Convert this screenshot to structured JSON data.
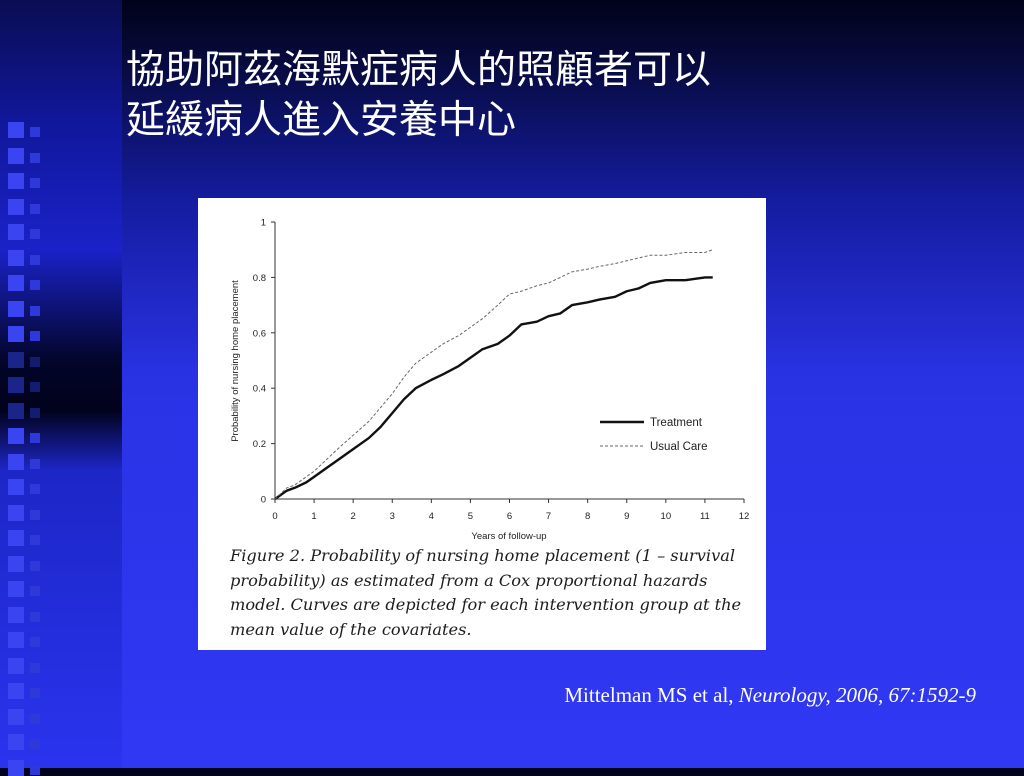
{
  "slide": {
    "title_line1": "協助阿茲海默症病人的照顧者可以",
    "title_line2": "延緩病人進入安養中心",
    "caption": "Figure 2. Probability of nursing home placement (1 – survival probability) as estimated from a Cox proportional hazards model. Curves are depicted for each intervention group at the mean value of the covariates.",
    "citation_author": "Mittelman MS et al, ",
    "citation_journal": "Neurology, 2006, 67:1592-9"
  },
  "colors": {
    "background_top": "#01021a",
    "background_bottom": "#3038f4",
    "title_text": "#ffffff",
    "figure_background": "#ffffff",
    "curve": "#111111"
  },
  "chart_data": {
    "type": "line",
    "xlabel": "Years of follow-up",
    "ylabel": "Probability of nursing home placement",
    "xlim": [
      0,
      12
    ],
    "ylim": [
      0,
      1
    ],
    "xticks": [
      "0",
      "1",
      "2",
      "3",
      "4",
      "5",
      "6",
      "7",
      "8",
      "9",
      "10",
      "11",
      "12"
    ],
    "yticks": [
      "0",
      "0.2",
      "0.4",
      "0.6",
      "0.8",
      "1"
    ],
    "legend_position": "right, lower-middle",
    "grid": false,
    "series": [
      {
        "name": "Treatment",
        "style": "solid",
        "x": [
          0,
          0.3,
          0.5,
          0.8,
          1.0,
          1.3,
          1.6,
          2.0,
          2.4,
          2.7,
          3.0,
          3.3,
          3.6,
          4.0,
          4.3,
          4.7,
          5.0,
          5.3,
          5.7,
          6.0,
          6.3,
          6.7,
          7.0,
          7.3,
          7.6,
          8.0,
          8.3,
          8.7,
          9.0,
          9.3,
          9.6,
          10.0,
          10.5,
          11.0,
          11.2
        ],
        "y": [
          0,
          0.03,
          0.04,
          0.06,
          0.08,
          0.11,
          0.14,
          0.18,
          0.22,
          0.26,
          0.31,
          0.36,
          0.4,
          0.43,
          0.45,
          0.48,
          0.51,
          0.54,
          0.56,
          0.59,
          0.63,
          0.64,
          0.66,
          0.67,
          0.7,
          0.71,
          0.72,
          0.73,
          0.75,
          0.76,
          0.78,
          0.79,
          0.79,
          0.8,
          0.8
        ]
      },
      {
        "name": "Usual Care",
        "style": "dashed",
        "x": [
          0,
          0.3,
          0.5,
          0.8,
          1.0,
          1.3,
          1.6,
          2.0,
          2.4,
          2.7,
          3.0,
          3.3,
          3.6,
          4.0,
          4.3,
          4.7,
          5.0,
          5.3,
          5.7,
          6.0,
          6.3,
          6.7,
          7.0,
          7.3,
          7.6,
          8.0,
          8.3,
          8.7,
          9.0,
          9.3,
          9.6,
          10.0,
          10.5,
          11.0,
          11.2
        ],
        "y": [
          0,
          0.04,
          0.05,
          0.08,
          0.1,
          0.14,
          0.18,
          0.23,
          0.28,
          0.33,
          0.38,
          0.44,
          0.49,
          0.53,
          0.56,
          0.59,
          0.62,
          0.65,
          0.7,
          0.74,
          0.75,
          0.77,
          0.78,
          0.8,
          0.82,
          0.83,
          0.84,
          0.85,
          0.86,
          0.87,
          0.88,
          0.88,
          0.89,
          0.89,
          0.9
        ]
      }
    ]
  }
}
